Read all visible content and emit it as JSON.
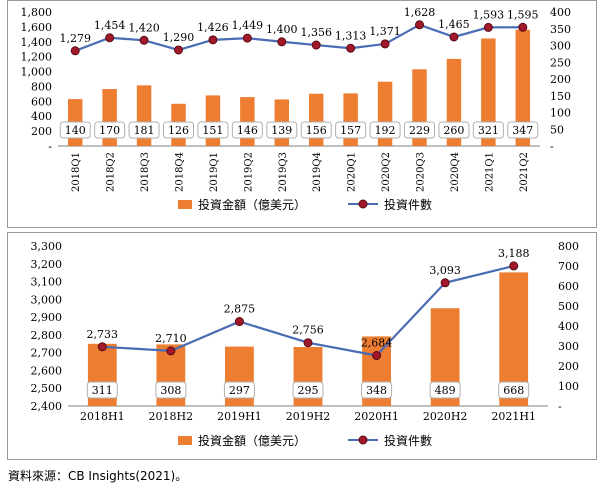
{
  "source_note": "資料來源：CB Insights(2021)。",
  "colors": {
    "bar": "#ed7d31",
    "line": "#4a6cb3",
    "marker": "#a0182a",
    "marker_edge": "#5b0a13",
    "axis": "#808080"
  },
  "chart_data": [
    {
      "type": "bar+line",
      "categories": [
        "2018Q1",
        "2018Q2",
        "2018Q3",
        "2018Q4",
        "2019Q1",
        "2019Q2",
        "2019Q3",
        "2019Q4",
        "2020Q1",
        "2020Q2",
        "2020Q3",
        "2020Q4",
        "2021Q1",
        "2021Q2"
      ],
      "series": [
        {
          "name": "投資金額（億美元）",
          "kind": "bar",
          "axis": "left",
          "values": [
            140,
            170,
            181,
            126,
            151,
            146,
            139,
            156,
            157,
            192,
            229,
            260,
            321,
            347
          ]
        },
        {
          "name": "投資件數",
          "kind": "line",
          "axis": "right",
          "values": [
            1279,
            1454,
            1420,
            1290,
            1426,
            1449,
            1400,
            1356,
            1313,
            1371,
            1628,
            1465,
            1593,
            1595
          ]
        }
      ],
      "left_axis": {
        "ticks": [
          "1,800",
          "1,600",
          "1,400",
          "1,200",
          "1,000",
          "800",
          "600",
          "400",
          "200",
          "-"
        ],
        "range": [
          0,
          1800
        ]
      },
      "right_axis": {
        "ticks": [
          "400",
          "350",
          "300",
          "250",
          "200",
          "150",
          "100",
          "50",
          "-"
        ],
        "range": [
          0,
          400
        ]
      },
      "legend": [
        "投資金額（億美元）",
        "投資件數"
      ],
      "legend_position": "bottom",
      "grid": false
    },
    {
      "type": "bar+line",
      "categories": [
        "2018H1",
        "2018H2",
        "2019H1",
        "2019H2",
        "2020H1",
        "2020H2",
        "2021H1"
      ],
      "series": [
        {
          "name": "投資金額（億美元）",
          "kind": "bar",
          "axis": "left",
          "values": [
            311,
            308,
            297,
            295,
            348,
            489,
            668
          ]
        },
        {
          "name": "投資件數",
          "kind": "line",
          "axis": "right",
          "values": [
            2733,
            2710,
            2875,
            2756,
            2684,
            3093,
            3188
          ]
        }
      ],
      "left_axis": {
        "ticks": [
          "3,300",
          "3,200",
          "3,100",
          "3,000",
          "2,900",
          "2,800",
          "2,700",
          "2,600",
          "2,500",
          "2,400"
        ],
        "range": [
          2400,
          3300
        ]
      },
      "right_axis": {
        "ticks": [
          "800",
          "700",
          "600",
          "500",
          "400",
          "300",
          "200",
          "100",
          "-"
        ],
        "range": [
          0,
          800
        ]
      },
      "legend": [
        "投資金額（億美元）",
        "投資件數"
      ],
      "legend_position": "bottom",
      "grid": false
    }
  ]
}
